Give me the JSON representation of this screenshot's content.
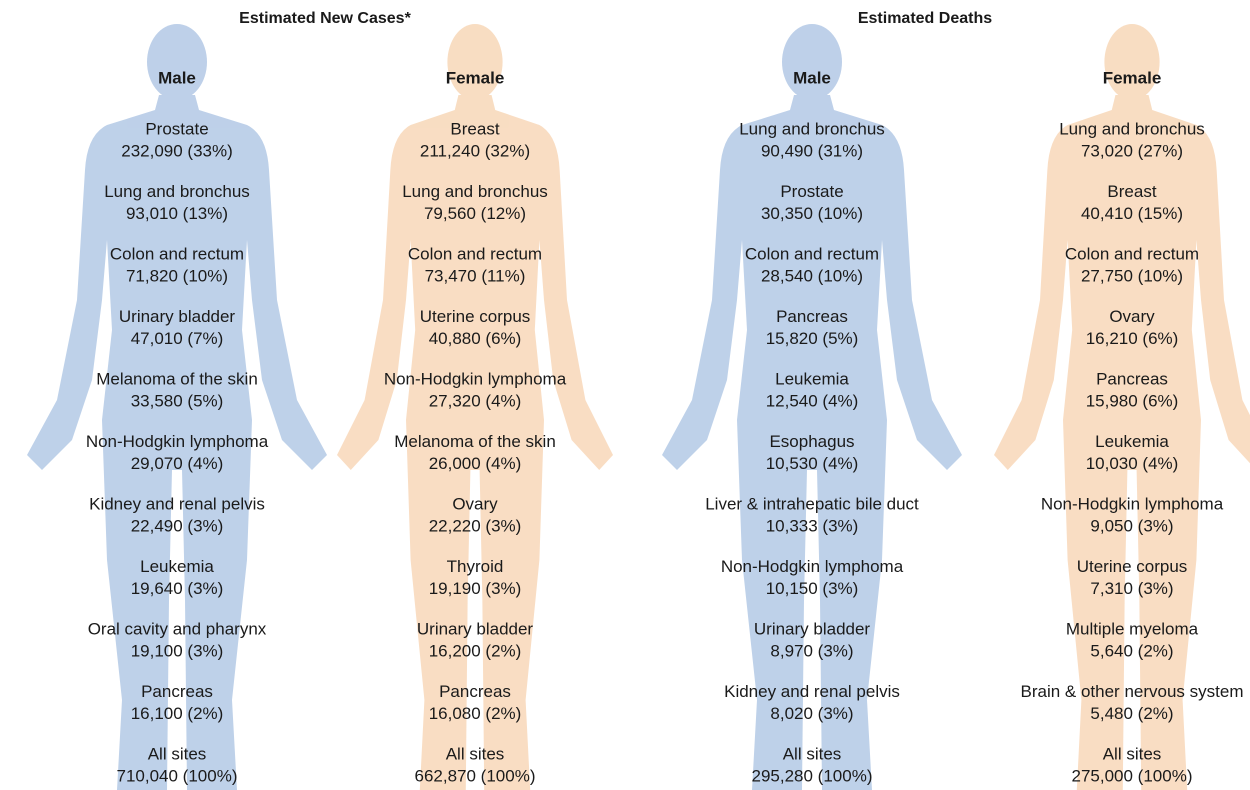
{
  "sections": [
    {
      "title": "Estimated New Cases*",
      "columns": [
        {
          "heading": "Male",
          "entries": [
            {
              "site": "Prostate",
              "value": "232,090 (33%)"
            },
            {
              "site": "Lung and bronchus",
              "value": "93,010 (13%)"
            },
            {
              "site": "Colon and rectum",
              "value": "71,820 (10%)"
            },
            {
              "site": "Urinary bladder",
              "value": "47,010 (7%)"
            },
            {
              "site": "Melanoma of the skin",
              "value": "33,580 (5%)"
            },
            {
              "site": "Non-Hodgkin lymphoma",
              "value": "29,070 (4%)"
            },
            {
              "site": "Kidney and renal pelvis",
              "value": "22,490 (3%)"
            },
            {
              "site": "Leukemia",
              "value": "19,640 (3%)"
            },
            {
              "site": "Oral cavity and pharynx",
              "value": "19,100 (3%)"
            },
            {
              "site": "Pancreas",
              "value": "16,100 (2%)"
            },
            {
              "site": "All sites",
              "value": "710,040 (100%)"
            }
          ]
        },
        {
          "heading": "Female",
          "entries": [
            {
              "site": "Breast",
              "value": "211,240 (32%)"
            },
            {
              "site": "Lung and bronchus",
              "value": "79,560 (12%)"
            },
            {
              "site": "Colon and rectum",
              "value": "73,470 (11%)"
            },
            {
              "site": "Uterine corpus",
              "value": "40,880 (6%)"
            },
            {
              "site": "Non-Hodgkin lymphoma",
              "value": "27,320 (4%)"
            },
            {
              "site": "Melanoma of the skin",
              "value": "26,000 (4%)"
            },
            {
              "site": "Ovary",
              "value": "22,220 (3%)"
            },
            {
              "site": "Thyroid",
              "value": "19,190 (3%)"
            },
            {
              "site": "Urinary bladder",
              "value": "16,200 (2%)"
            },
            {
              "site": "Pancreas",
              "value": "16,080 (2%)"
            },
            {
              "site": "All sites",
              "value": "662,870 (100%)"
            }
          ]
        }
      ]
    },
    {
      "title": "Estimated Deaths",
      "columns": [
        {
          "heading": "Male",
          "entries": [
            {
              "site": "Lung and bronchus",
              "value": "90,490 (31%)"
            },
            {
              "site": "Prostate",
              "value": "30,350 (10%)"
            },
            {
              "site": "Colon and rectum",
              "value": "28,540 (10%)"
            },
            {
              "site": "Pancreas",
              "value": "15,820 (5%)"
            },
            {
              "site": "Leukemia",
              "value": "12,540 (4%)"
            },
            {
              "site": "Esophagus",
              "value": "10,530 (4%)"
            },
            {
              "site": "Liver & intrahepatic bile duct",
              "value": "10,333 (3%)"
            },
            {
              "site": "Non-Hodgkin lymphoma",
              "value": "10,150 (3%)"
            },
            {
              "site": "Urinary bladder",
              "value": "8,970 (3%)"
            },
            {
              "site": "Kidney and renal pelvis",
              "value": "8,020 (3%)"
            },
            {
              "site": "All sites",
              "value": "295,280 (100%)"
            }
          ]
        },
        {
          "heading": "Female",
          "entries": [
            {
              "site": "Lung and bronchus",
              "value": "73,020 (27%)"
            },
            {
              "site": "Breast",
              "value": "40,410 (15%)"
            },
            {
              "site": "Colon and rectum",
              "value": "27,750 (10%)"
            },
            {
              "site": "Ovary",
              "value": "16,210 (6%)"
            },
            {
              "site": "Pancreas",
              "value": "15,980 (6%)"
            },
            {
              "site": "Leukemia",
              "value": "10,030 (4%)"
            },
            {
              "site": "Non-Hodgkin lymphoma",
              "value": "9,050 (3%)"
            },
            {
              "site": "Uterine corpus",
              "value": "7,310 (3%)"
            },
            {
              "site": "Multiple myeloma",
              "value": "5,640 (2%)"
            },
            {
              "site": "Brain & other nervous system",
              "value": "5,480 (2%)"
            },
            {
              "site": "All sites",
              "value": "275,000 (100%)"
            }
          ]
        }
      ]
    }
  ]
}
